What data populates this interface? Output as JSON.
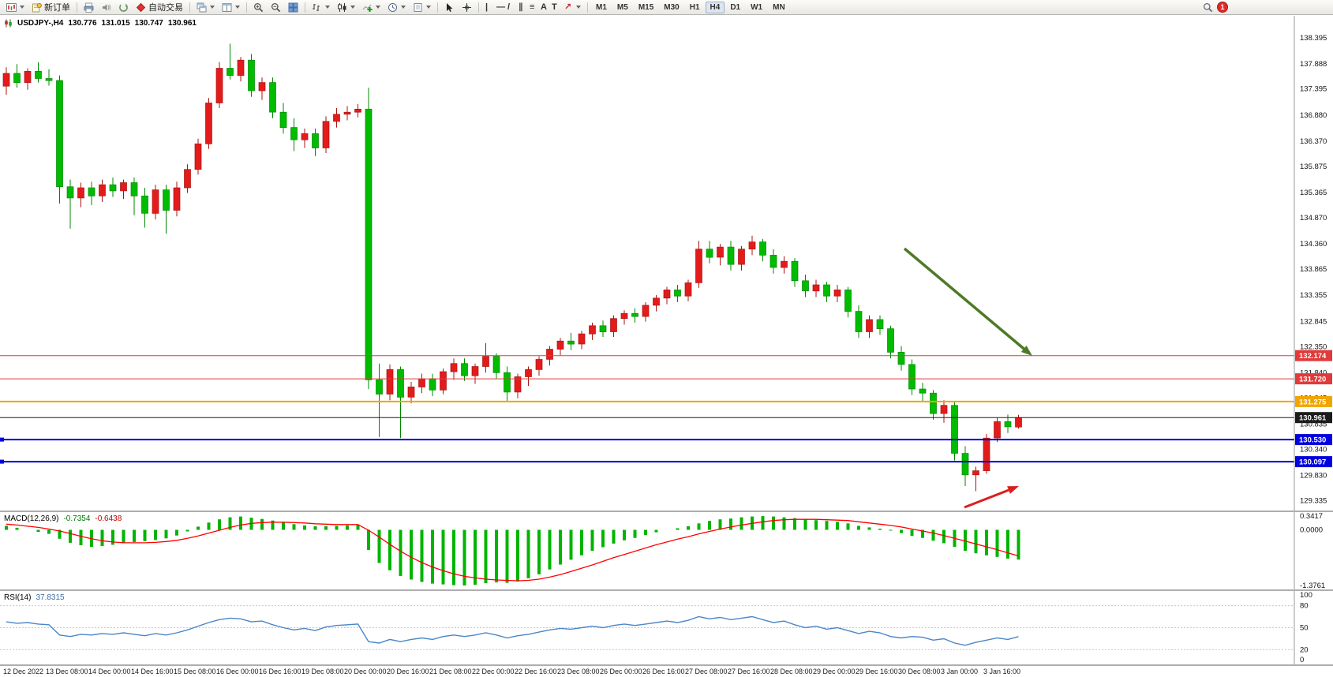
{
  "toolbar": {
    "new_order_label": "新订单",
    "autotrading_label": "自动交易",
    "timeframes": [
      "M1",
      "M5",
      "M15",
      "M30",
      "H1",
      "H4",
      "D1",
      "W1",
      "MN"
    ],
    "active_timeframe": "H4",
    "notification_count": "1"
  },
  "glyphs": {
    "vline": "|",
    "hline": "—",
    "trendline": "/",
    "channel": "∥",
    "fibonacci": "≡",
    "text_tool": "A",
    "label_tool": "T",
    "arrow_tool": "↗"
  },
  "chart_header": {
    "symbol_period": "USDJPY-,H4",
    "open": "130.776",
    "high": "131.015",
    "low": "130.747",
    "close": "130.961"
  },
  "macd_panel": {
    "label": "MACD(12,26,9)",
    "main_value": "-0.7354",
    "signal_value": "-0.6438",
    "scale": [
      {
        "label": "0.3417",
        "value": 0.3417
      },
      {
        "label": "0.0000",
        "value": 0
      },
      {
        "label": "-1.3761",
        "value": -1.3761
      }
    ]
  },
  "rsi_panel": {
    "label": "RSI(14)",
    "value": "37.8315",
    "levels": [
      80,
      50,
      20
    ],
    "scale": [
      {
        "label": "100",
        "value": 100
      },
      {
        "label": "80",
        "value": 80
      },
      {
        "label": "50",
        "value": 50
      },
      {
        "label": "20",
        "value": 20
      },
      {
        "label": "0",
        "value": 0
      }
    ]
  },
  "price_scale": [
    "138.395",
    "137.888",
    "137.395",
    "136.880",
    "136.370",
    "135.875",
    "135.365",
    "134.870",
    "134.360",
    "133.865",
    "133.355",
    "132.845",
    "132.350",
    "131.840",
    "131.345",
    "130.835",
    "130.340",
    "129.830",
    "129.335"
  ],
  "hlines": [
    {
      "value": 132.174,
      "label": "132.174",
      "color": "#e03a3a",
      "width": 1,
      "anchor": false
    },
    {
      "value": 131.72,
      "label": "131.720",
      "color": "#e03a3a",
      "width": 1,
      "anchor": false
    },
    {
      "value": 131.275,
      "label": "131.275",
      "color": "#f0a500",
      "width": 2,
      "anchor": false
    },
    {
      "value": 130.53,
      "label": "130.530",
      "color": "#0000dc",
      "width": 2,
      "anchor": true
    },
    {
      "value": 130.097,
      "label": "130.097",
      "color": "#0000dc",
      "width": 2,
      "anchor": true
    },
    {
      "value": 130.961,
      "label": "130.961",
      "color": "#1c1c1c",
      "width": 1,
      "anchor": false
    }
  ],
  "time_axis": [
    "12 Dec 2022",
    "13 Dec 08:00",
    "14 Dec 00:00",
    "14 Dec 16:00",
    "15 Dec 08:00",
    "16 Dec 00:00",
    "16 Dec 16:00",
    "19 Dec 08:00",
    "20 Dec 00:00",
    "20 Dec 16:00",
    "21 Dec 08:00",
    "22 Dec 00:00",
    "22 Dec 16:00",
    "23 Dec 08:00",
    "26 Dec 00:00",
    "26 Dec 16:00",
    "27 Dec 08:00",
    "27 Dec 16:00",
    "28 Dec 08:00",
    "29 Dec 00:00",
    "29 Dec 16:00",
    "30 Dec 08:00",
    "3 Jan 00:00",
    "3 Jan 16:00"
  ],
  "annotations": {
    "trend_arrow": {
      "name": "downtrend-arrow",
      "color": "#4e7a27",
      "direction": "down-right"
    },
    "signal_arrow": {
      "name": "reversal-arrow",
      "color": "#dc1e1e",
      "direction": "up-right"
    }
  },
  "chart_data": {
    "type": "candlestick",
    "title": "USDJPY- H4",
    "ylim": [
      129.14,
      138.83
    ],
    "x_label_every": 4,
    "colors": {
      "up": "#e41b1b",
      "up_border": "#a81414",
      "down": "#00bc00",
      "down_border": "#008800",
      "macd_histogram": "#00b400",
      "macd_signal": "#ff0000",
      "rsi": "#4a86c8"
    },
    "candles": [
      [
        137.45,
        137.82,
        137.28,
        137.7
      ],
      [
        137.7,
        137.88,
        137.42,
        137.52
      ],
      [
        137.52,
        137.8,
        137.38,
        137.74
      ],
      [
        137.74,
        137.92,
        137.52,
        137.6
      ],
      [
        137.6,
        137.78,
        137.46,
        137.56
      ],
      [
        137.56,
        137.66,
        135.15,
        135.48
      ],
      [
        135.48,
        135.62,
        134.66,
        135.26
      ],
      [
        135.26,
        135.56,
        135.08,
        135.46
      ],
      [
        135.46,
        135.58,
        135.12,
        135.3
      ],
      [
        135.3,
        135.62,
        135.18,
        135.52
      ],
      [
        135.52,
        135.66,
        135.28,
        135.4
      ],
      [
        135.4,
        135.62,
        135.24,
        135.56
      ],
      [
        135.56,
        135.66,
        134.92,
        135.3
      ],
      [
        135.3,
        135.46,
        134.68,
        134.96
      ],
      [
        134.96,
        135.52,
        134.84,
        135.42
      ],
      [
        135.42,
        135.52,
        134.56,
        135.02
      ],
      [
        135.02,
        135.58,
        134.9,
        135.46
      ],
      [
        135.46,
        135.92,
        135.36,
        135.82
      ],
      [
        135.82,
        136.42,
        135.72,
        136.32
      ],
      [
        136.32,
        137.22,
        136.22,
        137.12
      ],
      [
        137.12,
        137.92,
        137.02,
        137.8
      ],
      [
        137.8,
        138.28,
        137.58,
        137.66
      ],
      [
        137.66,
        138.02,
        137.54,
        137.96
      ],
      [
        137.96,
        138.08,
        137.24,
        137.36
      ],
      [
        137.36,
        137.62,
        137.18,
        137.52
      ],
      [
        137.52,
        137.62,
        136.82,
        136.94
      ],
      [
        136.94,
        137.12,
        136.52,
        136.64
      ],
      [
        136.64,
        136.82,
        136.18,
        136.4
      ],
      [
        136.4,
        136.62,
        136.24,
        136.52
      ],
      [
        136.52,
        136.62,
        136.08,
        136.24
      ],
      [
        136.24,
        136.86,
        136.14,
        136.76
      ],
      [
        136.76,
        137.02,
        136.64,
        136.9
      ],
      [
        136.9,
        137.06,
        136.78,
        136.94
      ],
      [
        136.94,
        137.1,
        136.84,
        137.0
      ],
      [
        137.0,
        137.42,
        131.52,
        131.7
      ],
      [
        131.7,
        132.02,
        130.58,
        131.42
      ],
      [
        131.42,
        132.0,
        131.3,
        131.9
      ],
      [
        131.9,
        131.96,
        130.56,
        131.36
      ],
      [
        131.36,
        131.66,
        131.24,
        131.56
      ],
      [
        131.56,
        131.82,
        131.44,
        131.72
      ],
      [
        131.72,
        131.82,
        131.38,
        131.5
      ],
      [
        131.5,
        131.92,
        131.42,
        131.86
      ],
      [
        131.86,
        132.12,
        131.7,
        132.02
      ],
      [
        132.02,
        132.12,
        131.68,
        131.78
      ],
      [
        131.78,
        132.02,
        131.62,
        131.96
      ],
      [
        131.96,
        132.42,
        131.84,
        132.16
      ],
      [
        132.16,
        132.22,
        131.72,
        131.84
      ],
      [
        131.84,
        131.96,
        131.28,
        131.46
      ],
      [
        131.46,
        131.82,
        131.34,
        131.76
      ],
      [
        131.76,
        131.96,
        131.58,
        131.9
      ],
      [
        131.9,
        132.16,
        131.78,
        132.1
      ],
      [
        132.1,
        132.36,
        131.98,
        132.3
      ],
      [
        132.3,
        132.52,
        132.18,
        132.46
      ],
      [
        132.46,
        132.62,
        132.28,
        132.4
      ],
      [
        132.4,
        132.66,
        132.3,
        132.6
      ],
      [
        132.6,
        132.82,
        132.48,
        132.76
      ],
      [
        132.76,
        132.86,
        132.54,
        132.64
      ],
      [
        132.64,
        132.96,
        132.54,
        132.9
      ],
      [
        132.9,
        133.06,
        132.78,
        133.0
      ],
      [
        133.0,
        133.1,
        132.82,
        132.94
      ],
      [
        132.94,
        133.22,
        132.84,
        133.16
      ],
      [
        133.16,
        133.36,
        133.04,
        133.3
      ],
      [
        133.3,
        133.52,
        133.18,
        133.46
      ],
      [
        133.46,
        133.56,
        133.22,
        133.34
      ],
      [
        133.34,
        133.66,
        133.24,
        133.6
      ],
      [
        133.6,
        134.42,
        133.5,
        134.26
      ],
      [
        134.26,
        134.42,
        133.98,
        134.1
      ],
      [
        134.1,
        134.36,
        133.94,
        134.3
      ],
      [
        134.3,
        134.42,
        133.84,
        133.96
      ],
      [
        133.96,
        134.32,
        133.84,
        134.26
      ],
      [
        134.26,
        134.52,
        134.14,
        134.4
      ],
      [
        134.4,
        134.46,
        134.02,
        134.14
      ],
      [
        134.14,
        134.26,
        133.78,
        133.9
      ],
      [
        133.9,
        134.12,
        133.78,
        134.02
      ],
      [
        134.02,
        134.08,
        133.52,
        133.64
      ],
      [
        133.64,
        133.76,
        133.32,
        133.44
      ],
      [
        133.44,
        133.66,
        133.32,
        133.56
      ],
      [
        133.56,
        133.62,
        133.22,
        133.34
      ],
      [
        133.34,
        133.56,
        133.22,
        133.46
      ],
      [
        133.46,
        133.52,
        132.92,
        133.04
      ],
      [
        133.04,
        133.16,
        132.52,
        132.64
      ],
      [
        132.64,
        132.96,
        132.52,
        132.88
      ],
      [
        132.88,
        132.96,
        132.58,
        132.7
      ],
      [
        132.7,
        132.76,
        132.12,
        132.24
      ],
      [
        132.24,
        132.36,
        131.88,
        132.0
      ],
      [
        132.0,
        132.1,
        131.4,
        131.52
      ],
      [
        131.52,
        131.64,
        131.28,
        131.44
      ],
      [
        131.44,
        131.5,
        130.92,
        131.04
      ],
      [
        131.04,
        131.3,
        130.86,
        131.2
      ],
      [
        131.2,
        131.26,
        130.12,
        130.26
      ],
      [
        130.26,
        130.4,
        129.62,
        129.84
      ],
      [
        129.84,
        130.0,
        129.52,
        129.92
      ],
      [
        129.92,
        130.64,
        129.86,
        130.56
      ],
      [
        130.56,
        130.96,
        130.48,
        130.88
      ],
      [
        130.88,
        131.02,
        130.66,
        130.78
      ],
      [
        130.776,
        131.015,
        130.747,
        130.961
      ]
    ],
    "macd": {
      "histogram": [
        0.1,
        0.05,
        0.0,
        -0.05,
        -0.1,
        -0.22,
        -0.32,
        -0.38,
        -0.42,
        -0.4,
        -0.37,
        -0.33,
        -0.3,
        -0.28,
        -0.25,
        -0.21,
        -0.14,
        -0.04,
        0.08,
        0.18,
        0.26,
        0.31,
        0.33,
        0.3,
        0.27,
        0.23,
        0.19,
        0.14,
        0.11,
        0.09,
        0.09,
        0.1,
        0.11,
        0.12,
        -0.5,
        -0.82,
        -1.0,
        -1.14,
        -1.23,
        -1.29,
        -1.33,
        -1.35,
        -1.37,
        -1.376,
        -1.36,
        -1.32,
        -1.3,
        -1.31,
        -1.28,
        -1.2,
        -1.1,
        -0.98,
        -0.86,
        -0.74,
        -0.63,
        -0.52,
        -0.43,
        -0.34,
        -0.26,
        -0.2,
        -0.13,
        -0.06,
        0.0,
        0.04,
        0.09,
        0.16,
        0.22,
        0.26,
        0.28,
        0.31,
        0.33,
        0.34,
        0.33,
        0.31,
        0.29,
        0.26,
        0.24,
        0.22,
        0.2,
        0.16,
        0.1,
        0.06,
        0.03,
        -0.02,
        -0.08,
        -0.15,
        -0.2,
        -0.27,
        -0.33,
        -0.42,
        -0.52,
        -0.58,
        -0.63,
        -0.67,
        -0.71,
        -0.7354
      ],
      "signal": [
        0.14,
        0.12,
        0.09,
        0.06,
        0.02,
        -0.03,
        -0.09,
        -0.16,
        -0.22,
        -0.27,
        -0.3,
        -0.32,
        -0.32,
        -0.32,
        -0.31,
        -0.29,
        -0.26,
        -0.21,
        -0.15,
        -0.08,
        -0.01,
        0.06,
        0.12,
        0.16,
        0.18,
        0.19,
        0.19,
        0.18,
        0.17,
        0.15,
        0.14,
        0.13,
        0.13,
        0.13,
        -0.01,
        -0.18,
        -0.36,
        -0.53,
        -0.68,
        -0.81,
        -0.92,
        -1.01,
        -1.09,
        -1.15,
        -1.19,
        -1.22,
        -1.24,
        -1.25,
        -1.26,
        -1.25,
        -1.22,
        -1.17,
        -1.11,
        -1.03,
        -0.95,
        -0.87,
        -0.78,
        -0.69,
        -0.61,
        -0.53,
        -0.45,
        -0.37,
        -0.3,
        -0.23,
        -0.17,
        -0.1,
        -0.04,
        0.02,
        0.07,
        0.12,
        0.16,
        0.2,
        0.23,
        0.25,
        0.26,
        0.26,
        0.26,
        0.25,
        0.24,
        0.23,
        0.2,
        0.17,
        0.14,
        0.11,
        0.07,
        0.02,
        -0.03,
        -0.08,
        -0.14,
        -0.21,
        -0.28,
        -0.35,
        -0.42,
        -0.49,
        -0.57,
        -0.6438
      ],
      "ylim": [
        -1.3761,
        0.3417
      ]
    },
    "rsi": {
      "values": [
        58,
        56,
        57,
        55,
        54,
        40,
        38,
        41,
        40,
        42,
        41,
        43,
        41,
        39,
        42,
        40,
        43,
        47,
        52,
        57,
        61,
        63,
        62,
        58,
        59,
        54,
        50,
        47,
        49,
        46,
        51,
        53,
        54,
        55,
        31,
        29,
        34,
        31,
        34,
        36,
        34,
        38,
        40,
        38,
        40,
        43,
        40,
        36,
        39,
        41,
        44,
        47,
        49,
        48,
        50,
        52,
        50,
        53,
        55,
        53,
        55,
        57,
        59,
        57,
        60,
        65,
        62,
        64,
        61,
        63,
        65,
        61,
        57,
        59,
        54,
        50,
        52,
        48,
        50,
        46,
        42,
        45,
        43,
        38,
        36,
        38,
        37,
        33,
        35,
        29,
        26,
        30,
        33,
        36,
        34,
        37.83
      ],
      "ylim": [
        0,
        100
      ]
    }
  }
}
